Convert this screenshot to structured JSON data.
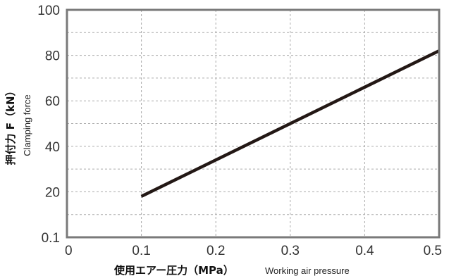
{
  "chart_data": {
    "type": "line",
    "xlabel": "使用エアー圧力（MPa）",
    "xlabel_sub": "Working air pressure",
    "ylabel": "押付力 F（kN）",
    "ylabel_sub": "Clamping force",
    "x_ticks": [
      "0",
      "0.1",
      "0.2",
      "0.3",
      "0.4",
      "0.5"
    ],
    "y_ticks": [
      "0.1",
      "20",
      "40",
      "60",
      "80",
      "100"
    ],
    "xlim": [
      0,
      0.5
    ],
    "ylim": [
      0,
      100
    ],
    "grid": true,
    "series": [
      {
        "x": [
          0.1,
          0.5
        ],
        "y": [
          18,
          82
        ]
      }
    ],
    "colors": {
      "line": "#231815",
      "axis": "#7a7a7a",
      "grid": "#aaaaaa"
    }
  }
}
